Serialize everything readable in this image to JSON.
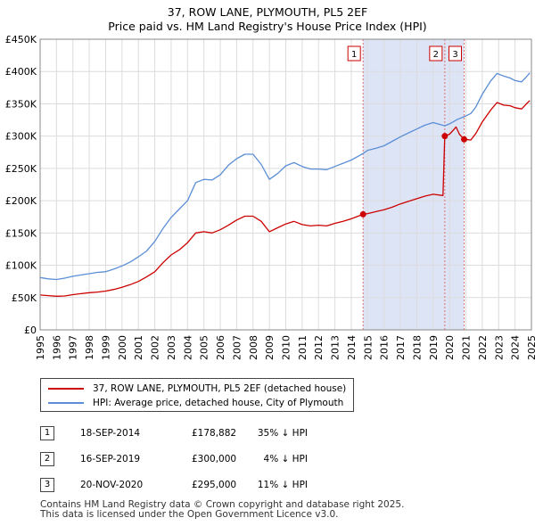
{
  "header": {
    "title_line1": "37, ROW LANE, PLYMOUTH, PL5 2EF",
    "title_line2": "Price paid vs. HM Land Registry's House Price Index (HPI)"
  },
  "chart_data": {
    "type": "line",
    "title": "37, ROW LANE, PLYMOUTH, PL5 2EF — Price paid vs. HM Land Registry's House Price Index (HPI)",
    "xlabel": "",
    "ylabel": "",
    "xlim": [
      1995,
      2025
    ],
    "ylim": [
      0,
      450000
    ],
    "x_ticks": [
      "1995",
      "1996",
      "1997",
      "1998",
      "1999",
      "2000",
      "2001",
      "2002",
      "2003",
      "2004",
      "2005",
      "2006",
      "2007",
      "2008",
      "2009",
      "2010",
      "2011",
      "2012",
      "2013",
      "2014",
      "2015",
      "2016",
      "2017",
      "2018",
      "2019",
      "2020",
      "2021",
      "2022",
      "2023",
      "2024",
      "2025"
    ],
    "y_ticks": [
      {
        "value": 0,
        "label": "£0"
      },
      {
        "value": 50000,
        "label": "£50K"
      },
      {
        "value": 100000,
        "label": "£100K"
      },
      {
        "value": 150000,
        "label": "£150K"
      },
      {
        "value": 200000,
        "label": "£200K"
      },
      {
        "value": 250000,
        "label": "£250K"
      },
      {
        "value": 300000,
        "label": "£300K"
      },
      {
        "value": 350000,
        "label": "£350K"
      },
      {
        "value": 400000,
        "label": "£400K"
      },
      {
        "value": 450000,
        "label": "£450K"
      }
    ],
    "grid": true,
    "shaded_region": {
      "from": 2014.72,
      "to": 2020.89,
      "color": "#dde4f6"
    },
    "series": [
      {
        "name": "37, ROW LANE, PLYMOUTH, PL5 2EF (detached house)",
        "color": "#cc0000",
        "points": [
          [
            1995.0,
            54000
          ],
          [
            1995.5,
            53000
          ],
          [
            1996.0,
            52000
          ],
          [
            1996.5,
            52500
          ],
          [
            1997.0,
            54500
          ],
          [
            1997.5,
            56000
          ],
          [
            1998.0,
            57500
          ],
          [
            1998.5,
            58500
          ],
          [
            1999.0,
            60000
          ],
          [
            1999.5,
            62500
          ],
          [
            2000.0,
            66000
          ],
          [
            2000.5,
            70000
          ],
          [
            2001.0,
            75000
          ],
          [
            2001.5,
            82000
          ],
          [
            2002.0,
            90000
          ],
          [
            2002.5,
            104000
          ],
          [
            2003.0,
            116000
          ],
          [
            2003.5,
            124000
          ],
          [
            2004.0,
            135000
          ],
          [
            2004.5,
            150000
          ],
          [
            2005.0,
            152000
          ],
          [
            2005.5,
            150000
          ],
          [
            2006.0,
            155000
          ],
          [
            2006.5,
            162000
          ],
          [
            2007.0,
            170000
          ],
          [
            2007.5,
            176000
          ],
          [
            2008.0,
            176000
          ],
          [
            2008.5,
            168000
          ],
          [
            2009.0,
            152000
          ],
          [
            2009.5,
            158000
          ],
          [
            2010.0,
            164000
          ],
          [
            2010.5,
            168000
          ],
          [
            2011.0,
            163000
          ],
          [
            2011.5,
            161000
          ],
          [
            2012.0,
            162000
          ],
          [
            2012.5,
            161000
          ],
          [
            2013.0,
            165000
          ],
          [
            2013.5,
            168000
          ],
          [
            2014.0,
            172000
          ],
          [
            2014.72,
            178882
          ],
          [
            2015.0,
            180000
          ],
          [
            2015.5,
            183000
          ],
          [
            2016.0,
            186000
          ],
          [
            2016.5,
            190000
          ],
          [
            2017.0,
            195000
          ],
          [
            2017.5,
            199000
          ],
          [
            2018.0,
            203000
          ],
          [
            2018.5,
            207000
          ],
          [
            2019.0,
            210000
          ],
          [
            2019.6,
            208000
          ],
          [
            2019.71,
            300000
          ],
          [
            2020.0,
            303000
          ],
          [
            2020.4,
            314000
          ],
          [
            2020.6,
            303000
          ],
          [
            2020.89,
            295000
          ],
          [
            2021.3,
            294000
          ],
          [
            2021.6,
            304000
          ],
          [
            2022.0,
            322000
          ],
          [
            2022.5,
            340000
          ],
          [
            2022.9,
            352000
          ],
          [
            2023.3,
            348000
          ],
          [
            2023.7,
            347000
          ],
          [
            2024.0,
            344000
          ],
          [
            2024.4,
            342000
          ],
          [
            2024.7,
            350000
          ],
          [
            2024.9,
            355000
          ]
        ]
      },
      {
        "name": "HPI: Average price, detached house, City of Plymouth",
        "color": "#5b8ed6",
        "points": [
          [
            1995.0,
            81000
          ],
          [
            1995.5,
            79000
          ],
          [
            1996.0,
            78000
          ],
          [
            1996.5,
            80000
          ],
          [
            1997.0,
            83000
          ],
          [
            1997.5,
            85000
          ],
          [
            1998.0,
            87000
          ],
          [
            1998.5,
            89000
          ],
          [
            1999.0,
            90000
          ],
          [
            1999.5,
            94000
          ],
          [
            2000.0,
            99000
          ],
          [
            2000.5,
            105000
          ],
          [
            2001.0,
            113000
          ],
          [
            2001.5,
            122000
          ],
          [
            2002.0,
            137000
          ],
          [
            2002.5,
            157000
          ],
          [
            2003.0,
            174000
          ],
          [
            2003.5,
            187000
          ],
          [
            2004.0,
            200000
          ],
          [
            2004.5,
            228000
          ],
          [
            2005.0,
            233000
          ],
          [
            2005.5,
            232000
          ],
          [
            2006.0,
            240000
          ],
          [
            2006.5,
            255000
          ],
          [
            2007.0,
            265000
          ],
          [
            2007.5,
            272000
          ],
          [
            2008.0,
            272000
          ],
          [
            2008.5,
            256000
          ],
          [
            2009.0,
            233000
          ],
          [
            2009.5,
            242000
          ],
          [
            2010.0,
            254000
          ],
          [
            2010.5,
            259000
          ],
          [
            2011.0,
            253000
          ],
          [
            2011.5,
            249000
          ],
          [
            2012.0,
            249000
          ],
          [
            2012.5,
            248000
          ],
          [
            2013.0,
            253000
          ],
          [
            2013.5,
            258000
          ],
          [
            2014.0,
            263000
          ],
          [
            2014.72,
            273000
          ],
          [
            2015.0,
            278000
          ],
          [
            2015.5,
            281000
          ],
          [
            2016.0,
            285000
          ],
          [
            2016.5,
            292000
          ],
          [
            2017.0,
            299000
          ],
          [
            2017.5,
            305000
          ],
          [
            2018.0,
            311000
          ],
          [
            2018.5,
            317000
          ],
          [
            2019.0,
            321000
          ],
          [
            2019.71,
            316000
          ],
          [
            2020.0,
            319000
          ],
          [
            2020.5,
            326000
          ],
          [
            2020.89,
            330000
          ],
          [
            2021.3,
            335000
          ],
          [
            2021.6,
            345000
          ],
          [
            2022.0,
            365000
          ],
          [
            2022.5,
            385000
          ],
          [
            2022.9,
            397000
          ],
          [
            2023.3,
            393000
          ],
          [
            2023.7,
            390000
          ],
          [
            2024.0,
            386000
          ],
          [
            2024.4,
            384000
          ],
          [
            2024.7,
            392000
          ],
          [
            2024.9,
            398000
          ]
        ]
      }
    ],
    "sales": [
      {
        "label": "1",
        "x": 2014.72,
        "value": 178882
      },
      {
        "label": "2",
        "x": 2019.71,
        "value": 300000
      },
      {
        "label": "3",
        "x": 2020.89,
        "value": 295000
      }
    ]
  },
  "legend": {
    "items": [
      {
        "label": "37, ROW LANE, PLYMOUTH, PL5 2EF (detached house)",
        "color": "#cc0000"
      },
      {
        "label": "HPI: Average price, detached house, City of Plymouth",
        "color": "#5b8ed6"
      }
    ]
  },
  "transactions": [
    {
      "num": "1",
      "date": "18-SEP-2014",
      "price": "£178,882",
      "hpi": "35% ↓ HPI"
    },
    {
      "num": "2",
      "date": "16-SEP-2019",
      "price": "£300,000",
      "hpi": "4% ↓ HPI"
    },
    {
      "num": "3",
      "date": "20-NOV-2020",
      "price": "£295,000",
      "hpi": "11% ↓ HPI"
    }
  ],
  "footer": {
    "line1": "Contains HM Land Registry data © Crown copyright and database right 2025.",
    "line2": "This data is licensed under the Open Government Licence v3.0."
  }
}
